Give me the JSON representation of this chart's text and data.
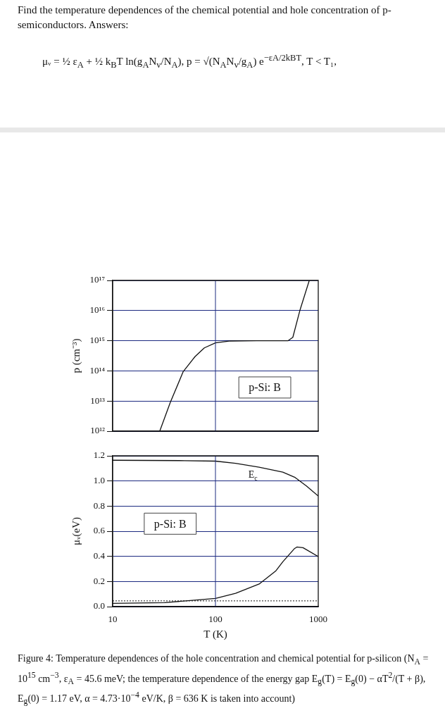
{
  "chart_data": [
    {
      "type": "line",
      "title": "Find the temperature dependences of the chemical potential and hole concentration of p-semiconductors. Answers:",
      "subtitle": "μᵥ = ½ ε$_{A}$ + ½ k$_{B}$T ln(g$_{A}$N$_{v}$/N$_{A}$),   p = √(N$_{A}$N$_{v}$/g$_{A}$) e$^{−εA/2kBT}$,   T < T₁,",
      "ylabel": "p (cm⁻³)",
      "log": "xy",
      "grid": "y",
      "tick_labels": "y",
      "xlim": [
        10,
        1000
      ],
      "xticks": [
        10,
        100,
        1000
      ],
      "ylim": [
        1000000000000.0,
        1e+17
      ],
      "yticks": [
        {
          "value": 1000000000000.0,
          "label": "10¹²"
        },
        {
          "value": 10000000000000.0,
          "label": "10¹³"
        },
        {
          "value": 100000000000000.0,
          "label": "10¹⁴"
        },
        {
          "value": 1000000000000000.0,
          "label": "10¹⁵"
        },
        {
          "value": 1e+16,
          "label": "10¹⁶"
        },
        {
          "value": 1e+17,
          "label": "10¹⁷"
        }
      ],
      "series": [
        {
          "color": "#111111",
          "x": [
            28.7,
            36.4,
            48.6,
            63.4,
            78,
            100,
            140,
            250,
            400,
            510,
            566,
            662,
            818
          ],
          "values": [
            1000000000000.0,
            9100000000000.0,
            95000000000000.0,
            300000000000000.0,
            580000000000000.0,
            850000000000000.0,
            980000000000000.0,
            1000000000000000.0,
            1000000000000000.0,
            1000000000000000.0,
            1300000000000000.0,
            1e+16,
            1e+17
          ]
        }
      ],
      "ref_lines": [
        {
          "axis": "x",
          "value": 100,
          "color": "#1c2a80"
        }
      ],
      "annotations": [
        "p-Si: B"
      ]
    },
    {
      "type": "line",
      "xlabel": "T (K)",
      "ylabel": "μᵥ(eV)",
      "log": "x",
      "grid": "y",
      "xlim": [
        10,
        1000
      ],
      "xticks": [
        10,
        100,
        1000
      ],
      "ylim": [
        0,
        1.2
      ],
      "yticks": [
        {
          "value": 0,
          "label": "0.0"
        },
        {
          "value": 0.2,
          "label": "0.2"
        },
        {
          "value": 0.4,
          "label": "0.4"
        },
        {
          "value": 0.6,
          "label": "0.6"
        },
        {
          "value": 0.8,
          "label": "0.8"
        },
        {
          "value": 1,
          "label": "1.0"
        },
        {
          "value": 1.2,
          "label": "1.2"
        }
      ],
      "series": [
        {
          "type": "line",
          "color": "#111111",
          "x": [
            10,
            50,
            100,
            157,
            266,
            452,
            589,
            767,
            1000
          ],
          "values": [
            1.165,
            1.162,
            1.158,
            1.14,
            1.11,
            1.07,
            1.03,
            0.96,
            0.88
          ]
        },
        {
          "color": "#111111",
          "x": [
            10,
            32,
            54,
            100,
            157,
            266,
            385,
            452,
            589,
            620,
            711,
            1000
          ],
          "values": [
            0.026,
            0.032,
            0.047,
            0.065,
            0.106,
            0.18,
            0.283,
            0.357,
            0.463,
            0.474,
            0.469,
            0.398
          ]
        }
      ],
      "ref_lines": [
        {
          "axis": "x",
          "value": 100,
          "color": "#1c2a80"
        },
        {
          "axis": "y",
          "value": 0.0456,
          "color": "#111111",
          "line_style": "dotted"
        }
      ],
      "annotations": [
        "p-Si: B",
        "E$_{c}$",
        "Figure 4: Temperature dependences of the hole concentration and chemical potential for p-silicon (N$_{A}$ = 10$^{15}$ cm$^{−3}$, ε$_{A}$ = 45.6 meV; the temperature dependence of the energy gap E$_{g}$(T) = E$_{g}$(0) − αT$^{2}$/(T + β), E$_{g}$(0) = 1.17 eV, α = 4.73·10$^{−4}$ eV/K, β = 636 K is taken into account)"
      ]
    }
  ]
}
